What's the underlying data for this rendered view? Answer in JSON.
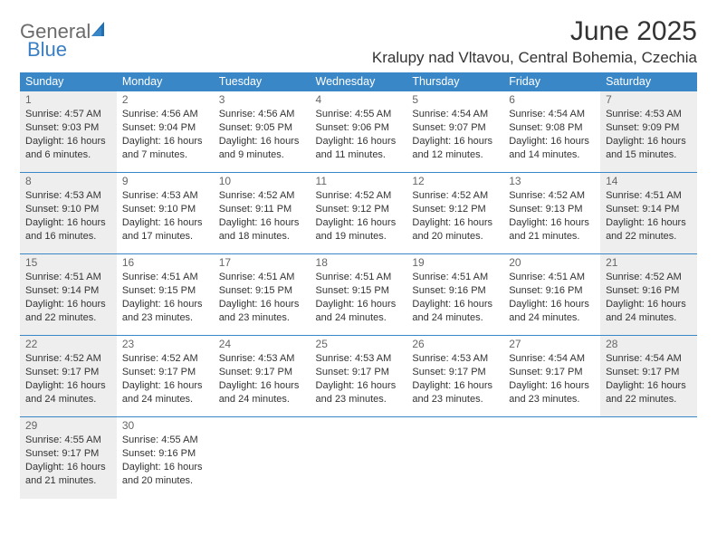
{
  "logo": {
    "general": "General",
    "blue": "Blue"
  },
  "title": "June 2025",
  "location": "Kralupy nad Vltavou, Central Bohemia, Czechia",
  "weekdays": [
    "Sunday",
    "Monday",
    "Tuesday",
    "Wednesday",
    "Thursday",
    "Friday",
    "Saturday"
  ],
  "colors": {
    "header_bg": "#3a87c7",
    "gray_bg": "#eeeeee",
    "border": "#3a87c7"
  },
  "days": [
    {
      "n": 1,
      "gray": true,
      "sunrise": "4:57 AM",
      "sunset": "9:03 PM",
      "daylight": "16 hours and 6 minutes."
    },
    {
      "n": 2,
      "gray": false,
      "sunrise": "4:56 AM",
      "sunset": "9:04 PM",
      "daylight": "16 hours and 7 minutes."
    },
    {
      "n": 3,
      "gray": false,
      "sunrise": "4:56 AM",
      "sunset": "9:05 PM",
      "daylight": "16 hours and 9 minutes."
    },
    {
      "n": 4,
      "gray": false,
      "sunrise": "4:55 AM",
      "sunset": "9:06 PM",
      "daylight": "16 hours and 11 minutes."
    },
    {
      "n": 5,
      "gray": false,
      "sunrise": "4:54 AM",
      "sunset": "9:07 PM",
      "daylight": "16 hours and 12 minutes."
    },
    {
      "n": 6,
      "gray": false,
      "sunrise": "4:54 AM",
      "sunset": "9:08 PM",
      "daylight": "16 hours and 14 minutes."
    },
    {
      "n": 7,
      "gray": true,
      "sunrise": "4:53 AM",
      "sunset": "9:09 PM",
      "daylight": "16 hours and 15 minutes."
    },
    {
      "n": 8,
      "gray": true,
      "sunrise": "4:53 AM",
      "sunset": "9:10 PM",
      "daylight": "16 hours and 16 minutes."
    },
    {
      "n": 9,
      "gray": false,
      "sunrise": "4:53 AM",
      "sunset": "9:10 PM",
      "daylight": "16 hours and 17 minutes."
    },
    {
      "n": 10,
      "gray": false,
      "sunrise": "4:52 AM",
      "sunset": "9:11 PM",
      "daylight": "16 hours and 18 minutes."
    },
    {
      "n": 11,
      "gray": false,
      "sunrise": "4:52 AM",
      "sunset": "9:12 PM",
      "daylight": "16 hours and 19 minutes."
    },
    {
      "n": 12,
      "gray": false,
      "sunrise": "4:52 AM",
      "sunset": "9:12 PM",
      "daylight": "16 hours and 20 minutes."
    },
    {
      "n": 13,
      "gray": false,
      "sunrise": "4:52 AM",
      "sunset": "9:13 PM",
      "daylight": "16 hours and 21 minutes."
    },
    {
      "n": 14,
      "gray": true,
      "sunrise": "4:51 AM",
      "sunset": "9:14 PM",
      "daylight": "16 hours and 22 minutes."
    },
    {
      "n": 15,
      "gray": true,
      "sunrise": "4:51 AM",
      "sunset": "9:14 PM",
      "daylight": "16 hours and 22 minutes."
    },
    {
      "n": 16,
      "gray": false,
      "sunrise": "4:51 AM",
      "sunset": "9:15 PM",
      "daylight": "16 hours and 23 minutes."
    },
    {
      "n": 17,
      "gray": false,
      "sunrise": "4:51 AM",
      "sunset": "9:15 PM",
      "daylight": "16 hours and 23 minutes."
    },
    {
      "n": 18,
      "gray": false,
      "sunrise": "4:51 AM",
      "sunset": "9:15 PM",
      "daylight": "16 hours and 24 minutes."
    },
    {
      "n": 19,
      "gray": false,
      "sunrise": "4:51 AM",
      "sunset": "9:16 PM",
      "daylight": "16 hours and 24 minutes."
    },
    {
      "n": 20,
      "gray": false,
      "sunrise": "4:51 AM",
      "sunset": "9:16 PM",
      "daylight": "16 hours and 24 minutes."
    },
    {
      "n": 21,
      "gray": true,
      "sunrise": "4:52 AM",
      "sunset": "9:16 PM",
      "daylight": "16 hours and 24 minutes."
    },
    {
      "n": 22,
      "gray": true,
      "sunrise": "4:52 AM",
      "sunset": "9:17 PM",
      "daylight": "16 hours and 24 minutes."
    },
    {
      "n": 23,
      "gray": false,
      "sunrise": "4:52 AM",
      "sunset": "9:17 PM",
      "daylight": "16 hours and 24 minutes."
    },
    {
      "n": 24,
      "gray": false,
      "sunrise": "4:53 AM",
      "sunset": "9:17 PM",
      "daylight": "16 hours and 24 minutes."
    },
    {
      "n": 25,
      "gray": false,
      "sunrise": "4:53 AM",
      "sunset": "9:17 PM",
      "daylight": "16 hours and 23 minutes."
    },
    {
      "n": 26,
      "gray": false,
      "sunrise": "4:53 AM",
      "sunset": "9:17 PM",
      "daylight": "16 hours and 23 minutes."
    },
    {
      "n": 27,
      "gray": false,
      "sunrise": "4:54 AM",
      "sunset": "9:17 PM",
      "daylight": "16 hours and 23 minutes."
    },
    {
      "n": 28,
      "gray": true,
      "sunrise": "4:54 AM",
      "sunset": "9:17 PM",
      "daylight": "16 hours and 22 minutes."
    },
    {
      "n": 29,
      "gray": true,
      "sunrise": "4:55 AM",
      "sunset": "9:17 PM",
      "daylight": "16 hours and 21 minutes."
    },
    {
      "n": 30,
      "gray": false,
      "sunrise": "4:55 AM",
      "sunset": "9:16 PM",
      "daylight": "16 hours and 20 minutes."
    }
  ],
  "labels": {
    "sunrise": "Sunrise:",
    "sunset": "Sunset:",
    "daylight": "Daylight:"
  }
}
